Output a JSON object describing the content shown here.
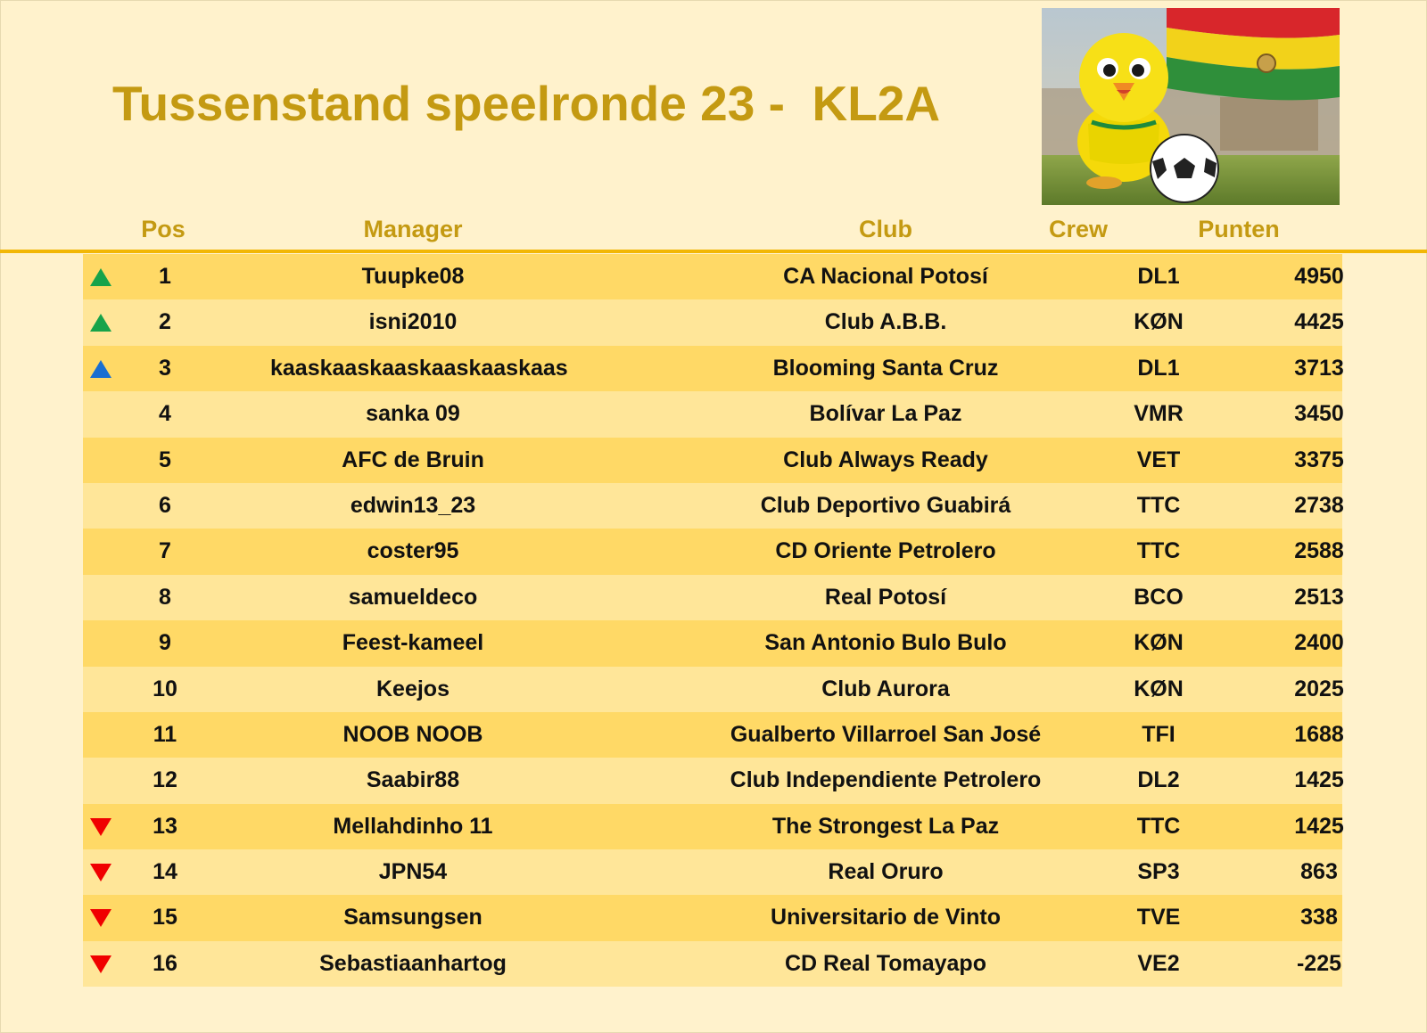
{
  "title": "Tussenstand speelronde 23 -  KL2A",
  "illustration": {
    "icon": "canary-mascot-with-football-and-bolivian-flag-illustration"
  },
  "columns": {
    "pos": "Pos",
    "manager": "Manager",
    "club": "Club",
    "crew": "Crew",
    "points": "Punten"
  },
  "colors": {
    "title": "#c49a12",
    "header_line": "#f2b705",
    "row_odd": "#ffd966",
    "row_even": "#ffe699",
    "up_green": "#17a34a",
    "up_blue": "#1a6fd1",
    "down_red": "#f00000"
  },
  "rows": [
    {
      "trend": "up-green",
      "pos": "1",
      "manager": "Tuupke08",
      "club": "CA Nacional Potosí",
      "crew": "DL1",
      "points": "4950"
    },
    {
      "trend": "up-green",
      "pos": "2",
      "manager": "isni2010",
      "club": "Club A.B.B.",
      "crew": "KØN",
      "points": "4425"
    },
    {
      "trend": "up-blue",
      "pos": "3",
      "manager": "kaaskaaskaaskaaskaaskaas",
      "club": "Blooming Santa Cruz",
      "crew": "DL1",
      "points": "3713"
    },
    {
      "trend": "",
      "pos": "4",
      "manager": "sanka 09",
      "club": "Bolívar La Paz",
      "crew": "VMR",
      "points": "3450"
    },
    {
      "trend": "",
      "pos": "5",
      "manager": "AFC de Bruin",
      "club": "Club Always Ready",
      "crew": "VET",
      "points": "3375"
    },
    {
      "trend": "",
      "pos": "6",
      "manager": "edwin13_23",
      "club": "Club Deportivo Guabirá",
      "crew": "TTC",
      "points": "2738"
    },
    {
      "trend": "",
      "pos": "7",
      "manager": "coster95",
      "club": "CD Oriente Petrolero",
      "crew": "TTC",
      "points": "2588"
    },
    {
      "trend": "",
      "pos": "8",
      "manager": "samueldeco",
      "club": "Real Potosí",
      "crew": "BCO",
      "points": "2513"
    },
    {
      "trend": "",
      "pos": "9",
      "manager": "Feest-kameel",
      "club": "San Antonio Bulo Bulo",
      "crew": "KØN",
      "points": "2400"
    },
    {
      "trend": "",
      "pos": "10",
      "manager": "Keejos",
      "club": "Club Aurora",
      "crew": "KØN",
      "points": "2025"
    },
    {
      "trend": "",
      "pos": "11",
      "manager": "NOOB NOOB",
      "club": "Gualberto Villarroel San José",
      "crew": "TFI",
      "points": "1688"
    },
    {
      "trend": "",
      "pos": "12",
      "manager": "Saabir88",
      "club": "Club Independiente Petrolero",
      "crew": "DL2",
      "points": "1425"
    },
    {
      "trend": "down-red",
      "pos": "13",
      "manager": "Mellahdinho 11",
      "club": "The Strongest La Paz",
      "crew": "TTC",
      "points": "1425"
    },
    {
      "trend": "down-red",
      "pos": "14",
      "manager": "JPN54",
      "club": "Real Oruro",
      "crew": "SP3",
      "points": "863"
    },
    {
      "trend": "down-red",
      "pos": "15",
      "manager": "Samsungsen",
      "club": "Universitario de Vinto",
      "crew": "TVE",
      "points": "338"
    },
    {
      "trend": "down-red",
      "pos": "16",
      "manager": "Sebastiaanhartog",
      "club": "CD Real Tomayapo",
      "crew": "VE2",
      "points": "-225"
    }
  ]
}
